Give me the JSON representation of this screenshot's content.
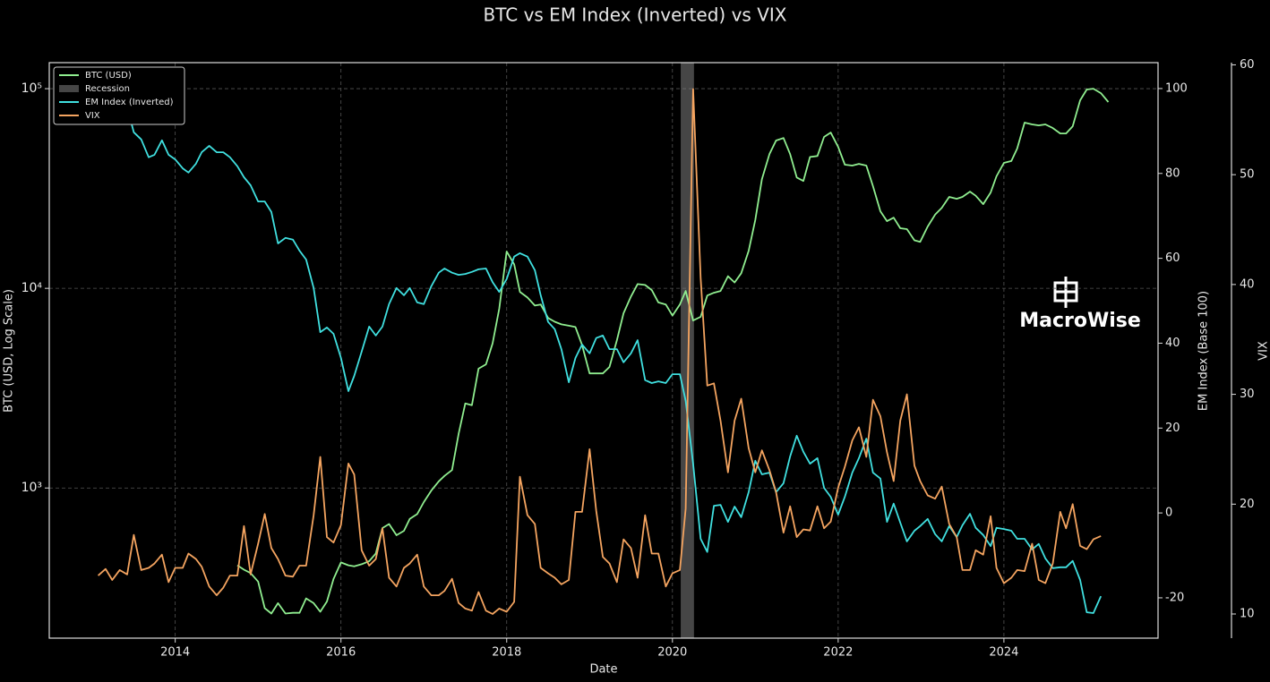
{
  "chart_data": {
    "type": "line",
    "title": "BTC vs EM Index (Inverted) vs VIX",
    "xlabel": "Date",
    "ylabel": "BTC (USD, Log Scale)",
    "y2label": "EM Index (Base 100)",
    "y3label": "VIX",
    "watermark": "MacroWise",
    "legend": "upper left",
    "grid": true,
    "yscale": "log",
    "xlim": [
      2012.48,
      2025.86
    ],
    "xticks": [
      2014,
      2016,
      2018,
      2020,
      2022,
      2024
    ],
    "ylim": [
      177,
      135000
    ],
    "yticks": [
      {
        "value": 1000,
        "label": "10³"
      },
      {
        "value": 10000,
        "label": "10⁴"
      },
      {
        "value": 100000,
        "label": "10⁵"
      }
    ],
    "y2lim": [
      -29.5,
      106.1
    ],
    "y2ticks": [
      -20,
      0,
      20,
      40,
      60,
      80,
      100
    ],
    "y3lim": [
      7.8,
      60.2
    ],
    "y3ticks": [
      10,
      20,
      30,
      40,
      50,
      60
    ],
    "recession": {
      "name": "Recession",
      "start": 2020.1,
      "end": 2020.26,
      "color": "#808080"
    },
    "x": [
      2013.07,
      2013.16,
      2013.24,
      2013.33,
      2013.42,
      2013.5,
      2013.59,
      2013.68,
      2013.75,
      2013.84,
      2013.92,
      2014.0,
      2014.09,
      2014.16,
      2014.25,
      2014.32,
      2014.41,
      2014.5,
      2014.58,
      2014.66,
      2014.75,
      2014.83,
      2014.91,
      2015.0,
      2015.08,
      2015.16,
      2015.24,
      2015.33,
      2015.42,
      2015.5,
      2015.58,
      2015.67,
      2015.75,
      2015.83,
      2015.91,
      2016.0,
      2016.09,
      2016.16,
      2016.25,
      2016.34,
      2016.42,
      2016.5,
      2016.58,
      2016.67,
      2016.76,
      2016.83,
      2016.92,
      2017.0,
      2017.09,
      2017.18,
      2017.25,
      2017.34,
      2017.42,
      2017.5,
      2017.58,
      2017.66,
      2017.75,
      2017.83,
      2017.91,
      2018.0,
      2018.09,
      2018.16,
      2018.25,
      2018.34,
      2018.41,
      2018.5,
      2018.58,
      2018.66,
      2018.75,
      2018.83,
      2018.91,
      2019.0,
      2019.08,
      2019.16,
      2019.24,
      2019.33,
      2019.41,
      2019.5,
      2019.58,
      2019.67,
      2019.75,
      2019.83,
      2019.92,
      2020.0,
      2020.09,
      2020.16,
      2020.25,
      2020.34,
      2020.42,
      2020.5,
      2020.58,
      2020.67,
      2020.75,
      2020.83,
      2020.92,
      2021.0,
      2021.08,
      2021.17,
      2021.25,
      2021.34,
      2021.42,
      2021.5,
      2021.58,
      2021.66,
      2021.75,
      2021.83,
      2021.91,
      2022.0,
      2022.08,
      2022.17,
      2022.25,
      2022.34,
      2022.42,
      2022.51,
      2022.59,
      2022.67,
      2022.75,
      2022.83,
      2022.92,
      2022.99,
      2023.08,
      2023.17,
      2023.25,
      2023.34,
      2023.43,
      2023.5,
      2023.59,
      2023.66,
      2023.75,
      2023.84,
      2023.91,
      2024.0,
      2024.09,
      2024.16,
      2024.25,
      2024.34,
      2024.42,
      2024.5,
      2024.59,
      2024.68,
      2024.75,
      2024.83,
      2024.92,
      2025.0,
      2025.08,
      2025.17,
      2025.26
    ],
    "series": [
      {
        "name": "BTC (USD)",
        "color": "#90ee90",
        "axis": "y",
        "values": [
          null,
          null,
          null,
          null,
          null,
          null,
          null,
          null,
          null,
          null,
          null,
          null,
          null,
          null,
          null,
          null,
          null,
          null,
          null,
          null,
          410,
          390,
          375,
          340,
          250,
          235,
          265,
          235,
          237,
          237,
          280,
          265,
          240,
          270,
          350,
          424,
          410,
          405,
          415,
          430,
          470,
          630,
          660,
          580,
          610,
          700,
          740,
          850,
          970,
          1080,
          1150,
          1230,
          1870,
          2650,
          2600,
          3960,
          4160,
          5300,
          7900,
          15300,
          13200,
          9600,
          9000,
          8200,
          8300,
          7100,
          6800,
          6600,
          6500,
          6400,
          5200,
          3750,
          3750,
          3750,
          4040,
          5500,
          7500,
          9100,
          10500,
          10400,
          9800,
          8500,
          8300,
          7300,
          8300,
          9700,
          6900,
          7200,
          9200,
          9500,
          9700,
          11500,
          10700,
          11900,
          15400,
          22000,
          35200,
          47000,
          55000,
          56600,
          47000,
          35900,
          34500,
          45500,
          46000,
          57300,
          60300,
          51100,
          41600,
          41200,
          42000,
          41200,
          32500,
          24300,
          21700,
          22600,
          20000,
          19800,
          17400,
          17100,
          20400,
          23400,
          25300,
          28700,
          28100,
          28700,
          30500,
          29100,
          26400,
          30200,
          36400,
          42500,
          43400,
          50100,
          67600,
          66200,
          65500,
          66200,
          63500,
          59700,
          59700,
          64800,
          87400,
          99000,
          100000,
          94900,
          85700
        ]
      },
      {
        "name": "EM Index (Inverted)",
        "color": "#40e0e0",
        "axis": "y2",
        "values": [
          100.2,
          99.8,
          99.2,
          97.7,
          95.6,
          89.7,
          88.0,
          83.8,
          84.4,
          87.8,
          84.4,
          83.3,
          81.2,
          80.2,
          82.3,
          85.0,
          86.5,
          85.0,
          85.0,
          83.8,
          81.7,
          79.1,
          77.2,
          73.4,
          73.4,
          70.9,
          63.5,
          64.8,
          64.4,
          61.8,
          59.7,
          53.0,
          42.6,
          43.7,
          42.2,
          36.5,
          28.7,
          32.3,
          38.0,
          43.9,
          41.8,
          43.9,
          49.2,
          53.0,
          51.3,
          53.0,
          49.6,
          49.2,
          53.4,
          56.6,
          57.6,
          56.6,
          56.1,
          56.3,
          56.8,
          57.4,
          57.6,
          54.4,
          52.1,
          55.1,
          60.4,
          61.2,
          60.4,
          57.2,
          51.3,
          45.0,
          43.3,
          38.6,
          30.8,
          36.5,
          39.7,
          37.6,
          41.2,
          41.8,
          38.6,
          38.6,
          35.5,
          37.6,
          40.7,
          31.3,
          30.6,
          31.0,
          30.6,
          32.7,
          32.7,
          26.4,
          11.6,
          -6.1,
          -9.2,
          1.7,
          1.9,
          -2.1,
          1.5,
          -1.0,
          4.9,
          12.3,
          9.1,
          9.5,
          4.9,
          7.0,
          13.3,
          18.2,
          14.4,
          11.6,
          12.9,
          5.9,
          3.8,
          -0.4,
          3.8,
          9.5,
          12.9,
          17.5,
          9.5,
          8.1,
          -2.1,
          2.2,
          -2.3,
          -6.7,
          -4.2,
          -3.1,
          -1.4,
          -5.0,
          -6.7,
          -3.1,
          -5.7,
          -2.9,
          -0.2,
          -3.5,
          -5.2,
          -7.8,
          -3.5,
          -3.8,
          -4.2,
          -6.1,
          -6.1,
          -8.6,
          -7.3,
          -10.7,
          -13.0,
          -12.8,
          -12.8,
          -11.3,
          -15.8,
          -23.4,
          -23.6,
          -19.6,
          null
        ]
      },
      {
        "name": "VIX",
        "color": "#f4a460",
        "axis": "y3",
        "values": [
          13.5,
          14.1,
          13.1,
          14.0,
          13.6,
          17.2,
          14.0,
          14.2,
          14.6,
          15.4,
          12.9,
          14.2,
          14.2,
          15.5,
          15.0,
          14.3,
          12.5,
          11.7,
          12.4,
          13.5,
          13.5,
          18.0,
          13.6,
          16.4,
          19.1,
          16.0,
          15.0,
          13.5,
          13.4,
          14.4,
          14.4,
          19.0,
          24.3,
          17.0,
          16.5,
          18.1,
          23.7,
          22.7,
          15.8,
          14.4,
          15.0,
          17.8,
          13.3,
          12.5,
          14.2,
          14.6,
          15.4,
          12.5,
          11.7,
          11.7,
          12.1,
          13.2,
          11.0,
          10.5,
          10.3,
          12.0,
          10.3,
          10.0,
          10.5,
          10.2,
          11.1,
          22.5,
          19.0,
          18.2,
          14.2,
          13.7,
          13.3,
          12.7,
          13.1,
          19.3,
          19.3,
          25.0,
          19.4,
          15.2,
          14.6,
          12.9,
          16.8,
          16.0,
          13.3,
          19.0,
          15.5,
          15.5,
          12.5,
          13.7,
          14.0,
          19.6,
          57.8,
          40.6,
          30.8,
          31.0,
          27.6,
          22.9,
          27.6,
          29.6,
          25.1,
          22.9,
          24.9,
          23.1,
          21.1,
          17.4,
          19.8,
          17.0,
          17.7,
          17.6,
          19.8,
          17.8,
          18.4,
          21.5,
          23.4,
          25.8,
          27.0,
          24.3,
          29.5,
          28.0,
          24.7,
          22.1,
          27.6,
          30.0,
          23.5,
          22.1,
          20.8,
          20.5,
          21.6,
          18.2,
          17.0,
          14.0,
          14.0,
          15.8,
          15.4,
          18.9,
          14.2,
          12.8,
          13.3,
          14.0,
          13.9,
          16.4,
          13.1,
          12.8,
          14.6,
          19.3,
          17.8,
          20.0,
          16.2,
          15.9,
          16.8,
          17.1,
          null
        ]
      }
    ]
  }
}
